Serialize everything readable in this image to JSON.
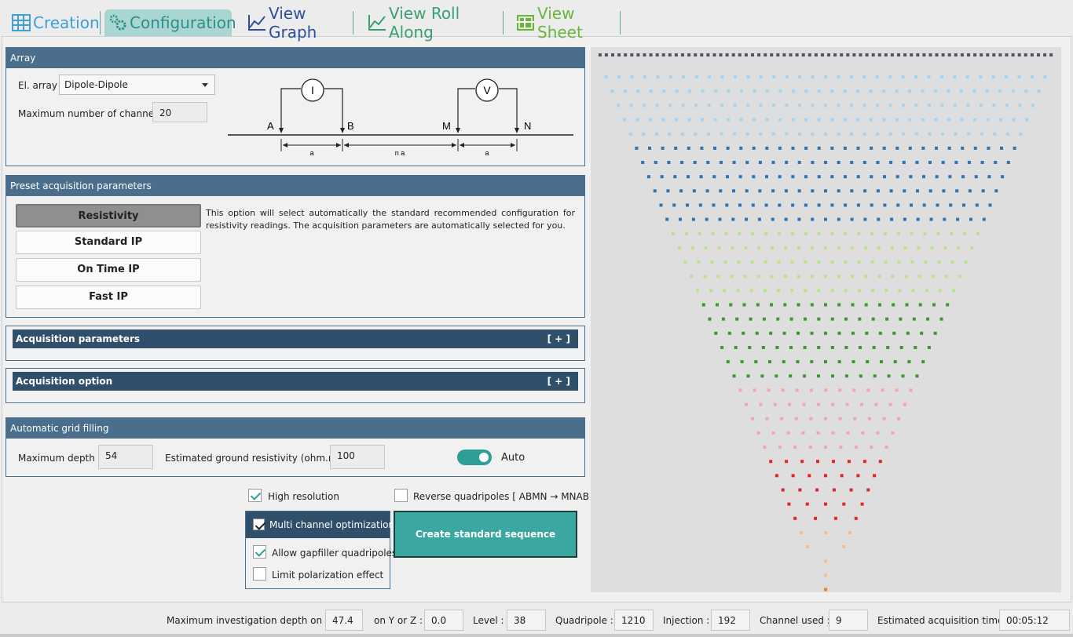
{
  "tabs": [
    {
      "label": "Creation",
      "color": "#3f9fd8",
      "icon": "grid-icon"
    },
    {
      "label": "Configuration",
      "color": "#2c8f88",
      "icon": "gears-icon"
    },
    {
      "label": "View Graph",
      "color": "#2f4f9a",
      "icon": "line-chart-icon"
    },
    {
      "label": "View Roll Along",
      "color": "#3aa070",
      "icon": "line-chart-icon"
    },
    {
      "label": "View Sheet",
      "color": "#6db33f",
      "icon": "table-icon"
    }
  ],
  "array": {
    "title": "Array",
    "el_array_label": "El. array :",
    "el_array_value": "Dipole-Dipole",
    "max_channels_label": "Maximum number of channels :",
    "max_channels_value": "20",
    "diagram": {
      "i_label": "I",
      "v_label": "V",
      "a": "A",
      "b": "B",
      "m": "M",
      "n": "N",
      "dim_a1": "a",
      "dim_na": "n a",
      "dim_a2": "a"
    }
  },
  "preset": {
    "title": "Preset acquisition parameters",
    "buttons": [
      "Resistivity",
      "Standard IP",
      "On Time IP",
      "Fast IP"
    ],
    "selected": 0,
    "description": "This option will select automatically the standard recommended configuration for resistivity readings. The acquisition parameters are automatically selected for you."
  },
  "acq_params": {
    "label": "Acquisition parameters",
    "expand": "[ + ]"
  },
  "acq_option": {
    "label": "Acquisition option",
    "expand": "[ + ]"
  },
  "grid": {
    "title": "Automatic grid filling",
    "max_depth_label": "Maximum depth",
    "max_depth_value": "54",
    "ground_res_label": "Estimated ground resistivity (ohm.m)",
    "ground_res_value": "100",
    "auto_label": "Auto",
    "auto_on": true
  },
  "options": {
    "high_resolution": "High resolution",
    "reverse_quad": "Reverse quadripoles [ ABMN → MNAB ]",
    "multi_channel": "Multi channel optimization",
    "allow_gapfiller": "Allow gapfiller quadripoles",
    "limit_polarization": "Limit polarization effect",
    "create_button": "Create standard sequence"
  },
  "status": {
    "max_depth_x_label": "Maximum investigation depth on X :",
    "max_depth_x": "47.4",
    "y_or_z_label": "on Y or Z :",
    "y_or_z": "0.0",
    "level_label": "Level :",
    "level": "38",
    "quadripole_label": "Quadripole :",
    "quadripole": "1210",
    "injection_label": "Injection :",
    "injection": "192",
    "channel_used_label": "Channel used :",
    "channel_used": "9",
    "est_time_label": "Estimated acquisition time :",
    "est_time": "00:05:12"
  },
  "pseudosection": {
    "electrodes": 72,
    "levels": 38,
    "level_colors": [
      "#4a5566",
      "#a9d2ee",
      "#a9d2ee",
      "#a9d2ee",
      "#a9d2ee",
      "#a9d2ee",
      "#2e74b5",
      "#2e74b5",
      "#2e74b5",
      "#2e74b5",
      "#2e74b5",
      "#2e74b5",
      "#b7e38d",
      "#b7e38d",
      "#b7e38d",
      "#b7e38d",
      "#b7e38d",
      "#3a9a2a",
      "#3a9a2a",
      "#3a9a2a",
      "#3a9a2a",
      "#3a9a2a",
      "#3a9a2a",
      "#f2a8a8",
      "#f2a8a8",
      "#f2a8a8",
      "#f2a8a8",
      "#f2a8a8",
      "#e0262a",
      "#e0262a",
      "#e0262a",
      "#e0262a",
      "#e0262a",
      "#f8c07c",
      "#f8c07c",
      "#f8c07c",
      "#f8c07c",
      "#f07c1a"
    ]
  }
}
